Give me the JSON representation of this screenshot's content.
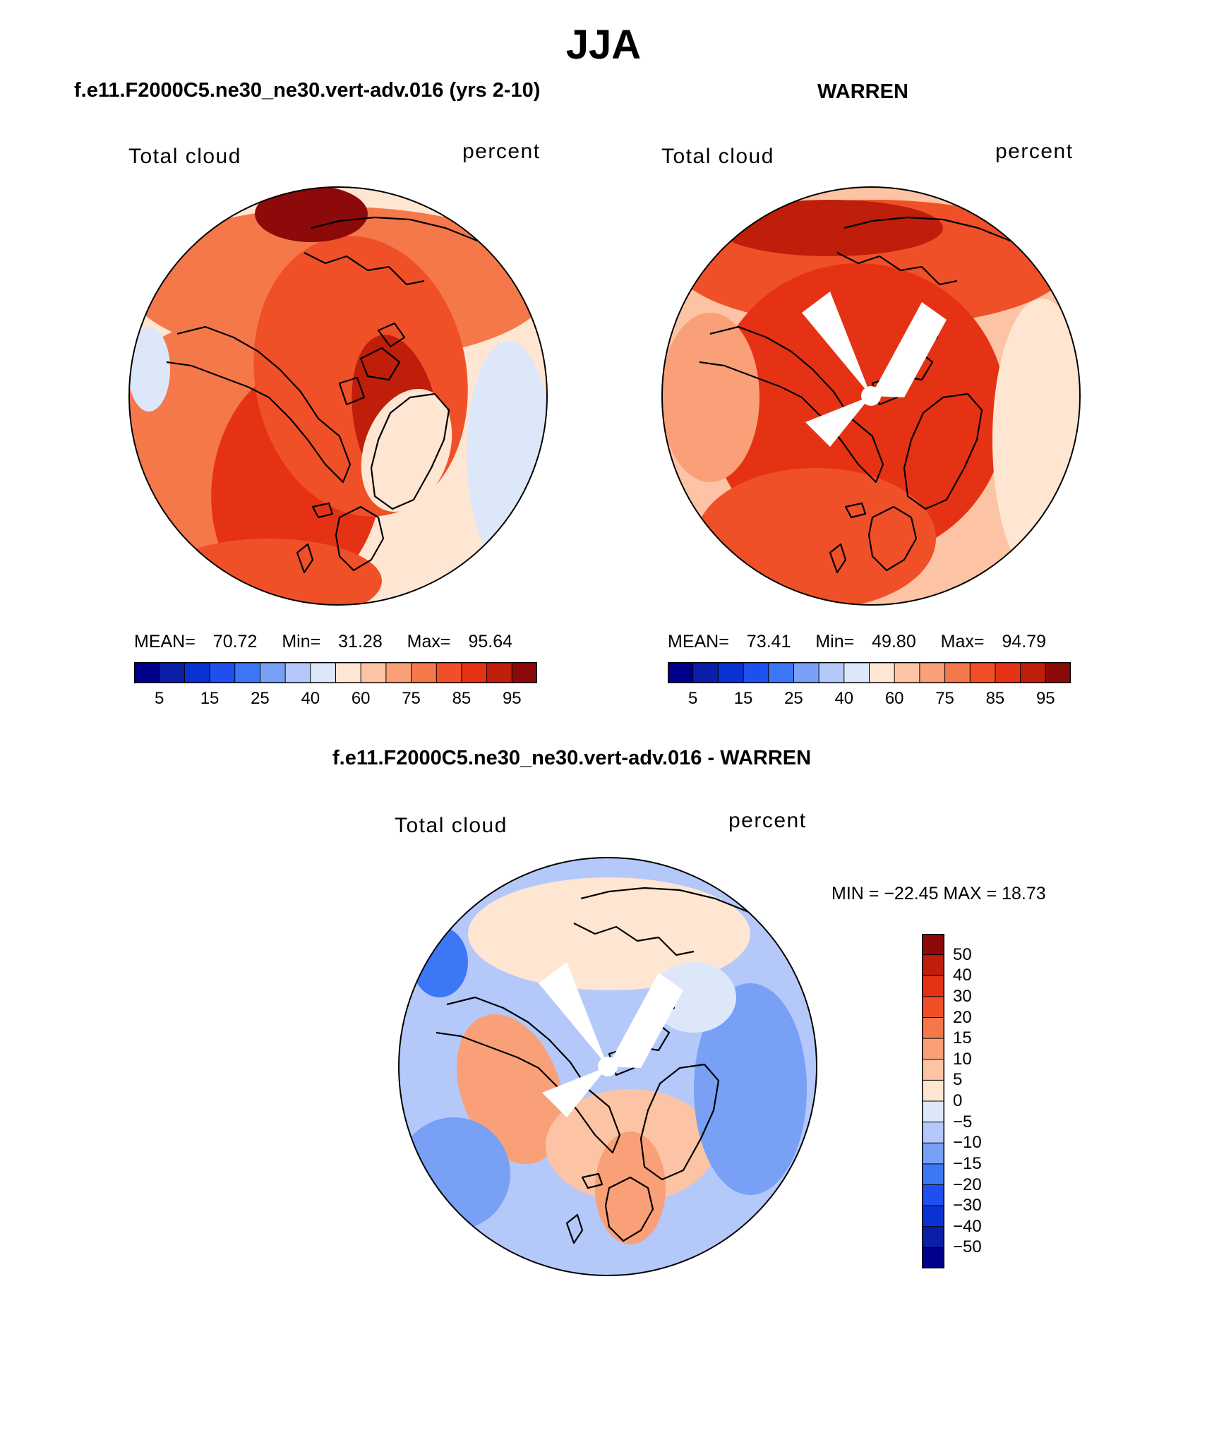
{
  "title": "JJA",
  "panels": [
    {
      "id": "model",
      "heading": "f.e11.F2000C5.ne30_ne30.vert-adv.016 (yrs 2-10)",
      "variable_label": "Total cloud",
      "units_label": "percent",
      "stats": {
        "mean_label": "MEAN=",
        "mean": "70.72",
        "min_label": "Min=",
        "min": "31.28",
        "max_label": "Max=",
        "max": "95.64"
      },
      "has_missing_sector": false
    },
    {
      "id": "obs",
      "heading": "WARREN",
      "variable_label": "Total cloud",
      "units_label": "percent",
      "stats": {
        "mean_label": "MEAN=",
        "mean": "73.41",
        "min_label": "Min=",
        "min": "49.80",
        "max_label": "Max=",
        "max": "94.79"
      },
      "has_missing_sector": true
    },
    {
      "id": "diff",
      "heading": "f.e11.F2000C5.ne30_ne30.vert-adv.016 - WARREN",
      "variable_label": "Total cloud",
      "units_label": "percent",
      "stats_line": "MIN = −22.45 MAX =   18.73",
      "has_missing_sector": true
    }
  ],
  "colorbars": {
    "absolute": {
      "colors": [
        "#00008c",
        "#0a1ea6",
        "#0a32d2",
        "#1e50f0",
        "#3c78f5",
        "#78a0f5",
        "#b4c8fa",
        "#dce8fa",
        "#ffe6d2",
        "#fcc4a4",
        "#faa078",
        "#f5784b",
        "#f05028",
        "#e63214",
        "#be1e0a",
        "#8c0a0a"
      ],
      "tick_labels": [
        "5",
        "15",
        "25",
        "40",
        "60",
        "75",
        "85",
        "95"
      ]
    },
    "difference": {
      "colors_top_to_bottom": [
        "#8c0a0a",
        "#be1e0a",
        "#e63214",
        "#f05028",
        "#f5784b",
        "#faa078",
        "#fcc4a4",
        "#ffe6d2",
        "#dce8fa",
        "#b4c8fa",
        "#78a0f5",
        "#3c78f5",
        "#1e50f0",
        "#0a32d2",
        "#0a1ea6",
        "#00008c"
      ],
      "tick_labels": [
        "50",
        "40",
        "30",
        "20",
        "15",
        "10",
        "5",
        "0",
        "−5",
        "−10",
        "−15",
        "−20",
        "−30",
        "−40",
        "−50"
      ]
    }
  }
}
